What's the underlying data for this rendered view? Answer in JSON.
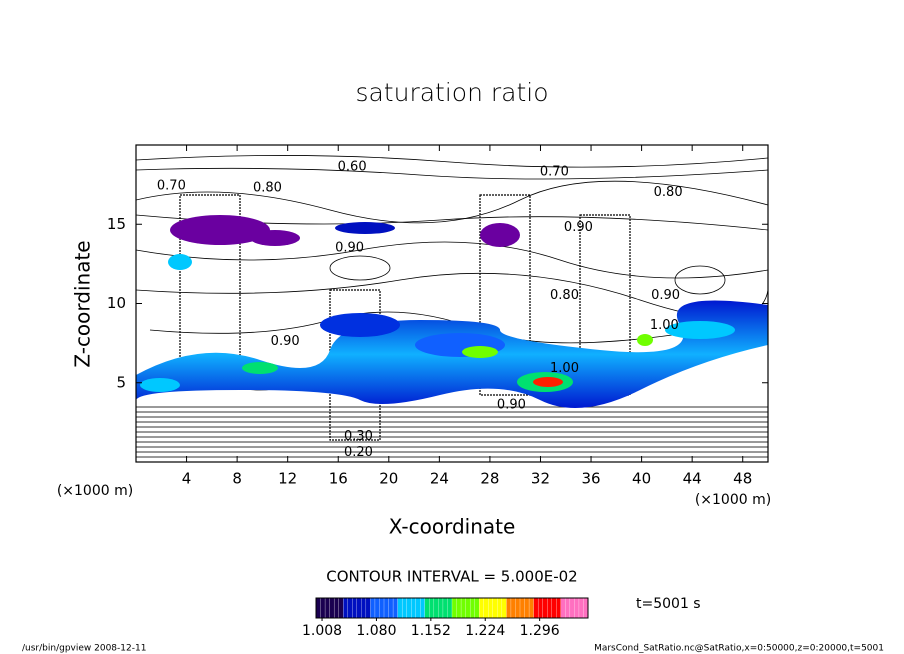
{
  "chart_data": {
    "type": "contour",
    "title": "saturation ratio",
    "xlabel": "X-coordinate",
    "ylabel": "Z-coordinate",
    "xunit": "(×1000 m)",
    "yunit": "(×1000 m)",
    "xlim": [
      0,
      50
    ],
    "ylim": [
      0,
      20
    ],
    "xticks": [
      4,
      8,
      12,
      16,
      20,
      24,
      28,
      32,
      36,
      40,
      44,
      48
    ],
    "yticks": [
      5,
      10,
      15
    ],
    "contour_interval": "CONTOUR INTERVAL = 5.000E-02",
    "contour_labels": [
      {
        "x": 17.1,
        "z": 18.6,
        "value": 0.6,
        "label": "0.60"
      },
      {
        "x": 2.8,
        "z": 17.4,
        "value": 0.7,
        "label": "0.70"
      },
      {
        "x": 10.4,
        "z": 17.3,
        "value": 0.8,
        "label": "0.80"
      },
      {
        "x": 33.1,
        "z": 18.3,
        "value": 0.7,
        "label": "0.70"
      },
      {
        "x": 42.1,
        "z": 17.0,
        "value": 0.8,
        "label": "0.80"
      },
      {
        "x": 35.0,
        "z": 14.8,
        "value": 0.9,
        "label": "0.90"
      },
      {
        "x": 16.9,
        "z": 13.5,
        "value": 0.9,
        "label": "0.90"
      },
      {
        "x": 41.9,
        "z": 10.5,
        "value": 0.9,
        "label": "0.90"
      },
      {
        "x": 33.9,
        "z": 10.5,
        "value": 0.8,
        "label": "0.80"
      },
      {
        "x": 11.8,
        "z": 7.6,
        "value": 0.9,
        "label": "0.90"
      },
      {
        "x": 41.8,
        "z": 8.6,
        "value": 1.0,
        "label": "1.00"
      },
      {
        "x": 33.9,
        "z": 5.9,
        "value": 1.0,
        "label": "1.00"
      },
      {
        "x": 29.7,
        "z": 3.6,
        "value": 0.9,
        "label": "0.90"
      },
      {
        "x": 17.6,
        "z": 1.6,
        "value": 0.3,
        "label": "0.30"
      },
      {
        "x": 17.6,
        "z": 0.6,
        "value": 0.2,
        "label": "0.20"
      }
    ],
    "colorbar": {
      "clim": [
        1.0,
        1.36
      ],
      "ticks": [
        1.008,
        {
          "value": 1.08,
          "label": "1.080"
        },
        1.152,
        1.224,
        1.296
      ],
      "colors": [
        "#1a0050",
        "#0010c0",
        "#1060ff",
        "#00c8ff",
        "#00e070",
        "#70ff00",
        "#ffff00",
        "#ff8000",
        "#ff0000",
        "#ff70c0"
      ]
    },
    "time_label": "t=5001 s",
    "footer_left": "/usr/bin/gpview   2008-12-11",
    "footer_right": "MarsCond_SatRatio.nc@SatRatio,x=0:50000,z=0:20000,t=5001"
  }
}
